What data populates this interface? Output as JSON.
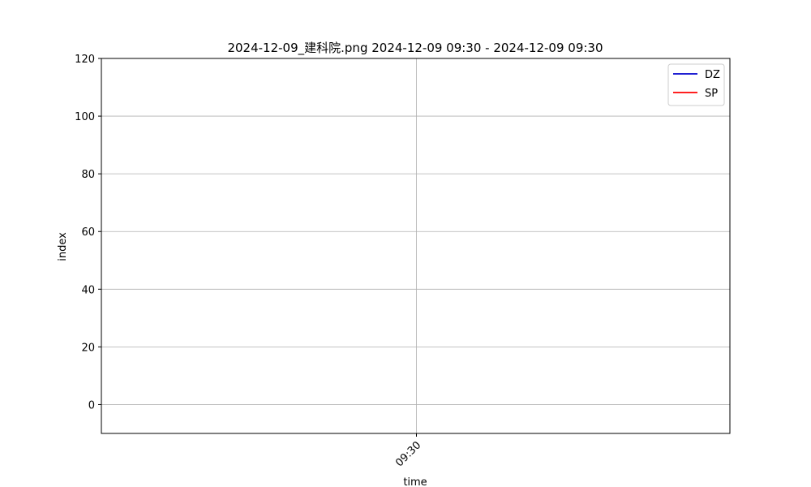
{
  "chart_data": {
    "type": "line",
    "title": "2024-12-09_建科院.png 2024-12-09 09:30 - 2024-12-09 09:30",
    "xlabel": "time",
    "ylabel": "index",
    "ylim": [
      -10,
      120
    ],
    "y_ticks": [
      0,
      20,
      40,
      60,
      80,
      100,
      120
    ],
    "x_ticks": [
      "09:30"
    ],
    "grid": true,
    "legend_position": "top-right",
    "series": [
      {
        "name": "DZ",
        "color": "#0000cc",
        "x": [],
        "y": []
      },
      {
        "name": "SP",
        "color": "#ff0000",
        "x": [],
        "y": []
      }
    ]
  }
}
